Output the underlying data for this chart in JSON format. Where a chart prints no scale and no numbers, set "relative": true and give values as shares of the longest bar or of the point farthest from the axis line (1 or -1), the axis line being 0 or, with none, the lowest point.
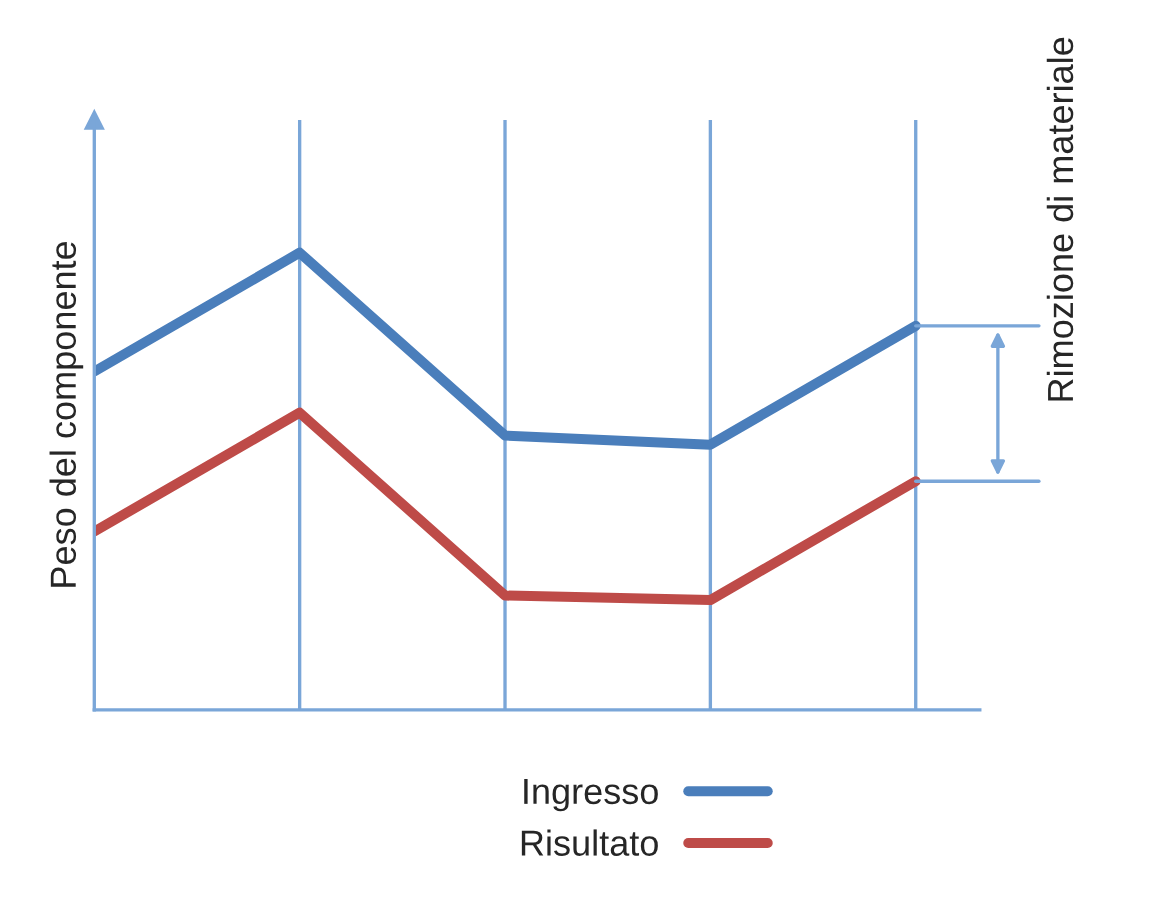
{
  "chart_data": {
    "type": "line",
    "relative": true,
    "ylabel": "Peso del componente",
    "categories": [
      null,
      null,
      null,
      null,
      null
    ],
    "series": [
      {
        "name": "Ingresso",
        "color": "#4a7ebb",
        "values": [
          0.74,
          1,
          0.6,
          0.58,
          0.84
        ]
      },
      {
        "name": "Risultato",
        "color": "#be4b48",
        "values": [
          0.39,
          0.65,
          0.25,
          0.24,
          0.5
        ]
      }
    ],
    "annotations": [
      "Rimozione di materiale"
    ],
    "grid": "x",
    "legend": "bottom",
    "marker": "none",
    "line_style": "solid"
  }
}
